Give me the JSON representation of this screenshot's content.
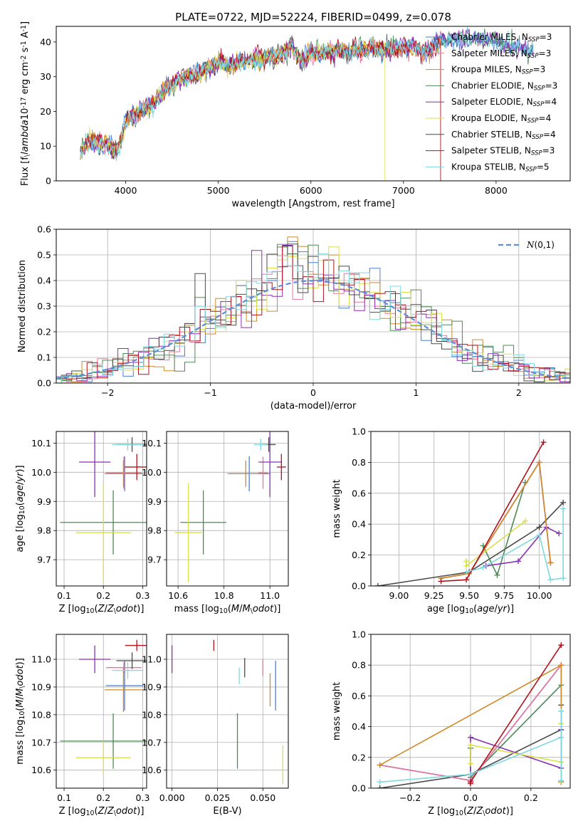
{
  "series_names": [
    "Chabrier MILES, N$_{SSP}$=3",
    "Salpeter MILES, N$_{SSP}$=3",
    "Kroupa MILES, N$_{SSP}$=3",
    "Chabrier ELODIE, N$_{SSP}$=3",
    "Salpeter ELODIE, N$_{SSP}$=4",
    "Kroupa ELODIE, N$_{SSP}$=4",
    "Chabrier STELIB, N$_{SSP}$=4",
    "Salpeter STELIB, N$_{SSP}$=3",
    "Kroupa STELIB, N$_{SSP}$=5"
  ],
  "colors": [
    "#4a7fd4",
    "#e8769c",
    "#d08a2a",
    "#4c8a56",
    "#8a2fb3",
    "#d9e04a",
    "#4a4a4a",
    "#b2121c",
    "#7fd8e0"
  ],
  "chart_data": [
    {
      "type": "line",
      "title": "PLATE=0722, MJD=52224, FIBERID=0499, z=0.078",
      "xlabel": "wavelength [Angstrom, rest frame]",
      "ylabel": "Flux [f$_\\lambda$10$^{-17}$ erg cm$^{-2}$ s$^{-1}$ A$^{-1}$]",
      "xlim": [
        3250,
        8800
      ],
      "ylim": [
        0,
        44.5
      ],
      "xticks": [
        4000,
        5000,
        6000,
        7000,
        8000
      ],
      "yticks": [
        0,
        10,
        20,
        30,
        40
      ],
      "legend_loc": "upper right",
      "continuum_x": [
        3500,
        3550,
        3600,
        3700,
        3800,
        3850,
        3900,
        3950,
        4000,
        4100,
        4200,
        4300,
        4400,
        4500,
        4600,
        4700,
        4800,
        4900,
        5000,
        5100,
        5200,
        5300,
        5400,
        5500,
        5600,
        5700,
        5800,
        5900,
        6000,
        6100,
        6200,
        6300,
        6400,
        6500,
        6600,
        6700,
        6800,
        6900,
        7000,
        7100,
        7200,
        7300,
        7400,
        7600,
        7800,
        8000,
        8200,
        8400
      ],
      "continuum_y": [
        8,
        10,
        12,
        10.5,
        11,
        9.5,
        8,
        12,
        17,
        19,
        20.5,
        22,
        26,
        27.5,
        30,
        30,
        31,
        32.5,
        34,
        33,
        34,
        34,
        35.5,
        35,
        36,
        36.5,
        38.5,
        34,
        37,
        37,
        37,
        38,
        37,
        38,
        38,
        38,
        38,
        38,
        38,
        39,
        37,
        38,
        40,
        41,
        41,
        40,
        38.5,
        38
      ]
    },
    {
      "type": "bar",
      "xlabel": "(data-model)/error",
      "ylabel": "Normed distribution",
      "xlim": [
        -2.5,
        2.5
      ],
      "ylim": [
        0,
        0.6
      ],
      "xticks": [
        -2,
        -1,
        0,
        1,
        2
      ],
      "yticks": [
        0.0,
        0.1,
        0.2,
        0.3,
        0.4,
        0.5,
        0.6
      ],
      "legend": [
        "$\\mathcal{N}(0,1)$"
      ],
      "legend_loc": "upper right"
    },
    {
      "type": "scatter",
      "xlabel": "Z [log$_{10}$($Z/Z_\\odot$)]",
      "ylabel": "age  [log$_{10}$($age/yr$)]",
      "xlim": [
        0.08,
        0.31
      ],
      "ylim": [
        9.61,
        10.14
      ],
      "xticks": [
        0.1,
        0.2,
        0.3
      ],
      "yticks": [
        9.7,
        9.8,
        9.9,
        10.0,
        10.1
      ],
      "points": [
        {
          "x": 0.254,
          "y": 9.995,
          "ex": 0.048,
          "ey": 0.06
        },
        {
          "x": 0.252,
          "y": 9.998,
          "ex": 0.045,
          "ey": 0.055
        },
        {
          "x": 0.251,
          "y": 9.995,
          "ex": 0.048,
          "ey": 0.045
        },
        {
          "x": 0.225,
          "y": 9.828,
          "ex": 0.135,
          "ey": 0.11
        },
        {
          "x": 0.178,
          "y": 10.035,
          "ex": 0.04,
          "ey": 0.12
        },
        {
          "x": 0.2,
          "y": 9.793,
          "ex": 0.07,
          "ey": 0.17
        },
        {
          "x": 0.273,
          "y": 10.095,
          "ex": 0.04,
          "ey": 0.025
        },
        {
          "x": 0.285,
          "y": 10.018,
          "ex": 0.03,
          "ey": 0.045
        },
        {
          "x": 0.262,
          "y": 10.095,
          "ex": 0.04,
          "ey": 0.02
        }
      ]
    },
    {
      "type": "scatter",
      "xlabel": "mass [log$_{10}$($M/M_\\odot$)]",
      "ylabel": "",
      "xlim": [
        10.55,
        11.08
      ],
      "ylim": [
        9.61,
        10.14
      ],
      "xticks": [
        10.6,
        10.8,
        11.0
      ],
      "yticks": [
        9.7,
        9.8,
        9.9,
        10.0,
        10.1
      ],
      "points": [
        {
          "x": 10.91,
          "y": 9.995,
          "ex": 0.09,
          "ey": 0.06
        },
        {
          "x": 10.97,
          "y": 9.998,
          "ex": 0.02,
          "ey": 0.055
        },
        {
          "x": 10.895,
          "y": 9.995,
          "ex": 0.08,
          "ey": 0.045
        },
        {
          "x": 10.71,
          "y": 9.828,
          "ex": 0.1,
          "ey": 0.11
        },
        {
          "x": 11.0,
          "y": 10.035,
          "ex": 0.05,
          "ey": 0.12
        },
        {
          "x": 10.645,
          "y": 9.793,
          "ex": 0.06,
          "ey": 0.17
        },
        {
          "x": 10.995,
          "y": 10.095,
          "ex": 0.03,
          "ey": 0.025
        },
        {
          "x": 11.05,
          "y": 10.018,
          "ex": 0.02,
          "ey": 0.045
        },
        {
          "x": 10.96,
          "y": 10.095,
          "ex": 0.03,
          "ey": 0.02
        }
      ]
    },
    {
      "type": "line",
      "xlabel": "age  [log$_{10}$($age/yr$)]",
      "ylabel": "mass weight",
      "xlim": [
        8.8,
        10.22
      ],
      "ylim": [
        0,
        1.0
      ],
      "xticks": [
        9.0,
        9.25,
        9.5,
        9.75,
        10.0
      ],
      "yticks": [
        0.0,
        0.2,
        0.4,
        0.6,
        0.8,
        1.0
      ],
      "series": [
        {
          "x": [
            9.3,
            9.5,
            10.0,
            10.08
          ],
          "y": [
            0.05,
            0.08,
            0.8,
            0.15
          ]
        },
        {
          "x": [
            9.3,
            9.5,
            10.0,
            10.08
          ],
          "y": [
            0.05,
            0.08,
            0.8,
            0.15
          ]
        },
        {
          "x": [
            9.3,
            9.5,
            10.0,
            10.08
          ],
          "y": [
            0.05,
            0.08,
            0.8,
            0.15
          ]
        },
        {
          "x": [
            9.6,
            9.7,
            9.9
          ],
          "y": [
            0.26,
            0.07,
            0.67
          ]
        },
        {
          "x": [
            9.62,
            9.85,
            10.05,
            10.14
          ],
          "y": [
            0.13,
            0.16,
            0.38,
            0.34
          ]
        },
        {
          "x": [
            9.48,
            9.48,
            9.9
          ],
          "y": [
            0.16,
            0.13,
            0.42
          ]
        },
        {
          "x": [
            8.85,
            9.5,
            10.0,
            10.17
          ],
          "y": [
            0.0,
            0.09,
            0.38,
            0.54
          ]
        },
        {
          "x": [
            9.3,
            9.48,
            10.03
          ],
          "y": [
            0.03,
            0.04,
            0.93
          ]
        },
        {
          "x": [
            9.48,
            9.6,
            10.0,
            10.08,
            10.17,
            10.17
          ],
          "y": [
            0.09,
            0.12,
            0.33,
            0.04,
            0.05,
            0.5
          ]
        }
      ]
    },
    {
      "type": "scatter",
      "xlabel": "Z [log$_{10}$($Z/Z_\\odot$)]",
      "ylabel": "mass [log$_{10}$($M/M_\\odot$)]",
      "xlim": [
        0.08,
        0.31
      ],
      "ylim": [
        10.535,
        11.09
      ],
      "xticks": [
        0.1,
        0.2,
        0.3
      ],
      "yticks": [
        10.6,
        10.7,
        10.8,
        10.9,
        11.0
      ],
      "points": [
        {
          "x": 0.254,
          "y": 10.905,
          "ex": 0.048,
          "ey": 0.09
        },
        {
          "x": 0.252,
          "y": 10.97,
          "ex": 0.045,
          "ey": 0.02
        },
        {
          "x": 0.251,
          "y": 10.89,
          "ex": 0.048,
          "ey": 0.08
        },
        {
          "x": 0.225,
          "y": 10.705,
          "ex": 0.135,
          "ey": 0.1
        },
        {
          "x": 0.178,
          "y": 11.0,
          "ex": 0.04,
          "ey": 0.05
        },
        {
          "x": 0.2,
          "y": 10.645,
          "ex": 0.07,
          "ey": 0.06
        },
        {
          "x": 0.273,
          "y": 10.995,
          "ex": 0.04,
          "ey": 0.03
        },
        {
          "x": 0.285,
          "y": 11.05,
          "ex": 0.03,
          "ey": 0.02
        },
        {
          "x": 0.262,
          "y": 10.96,
          "ex": 0.04,
          "ey": 0.03
        }
      ]
    },
    {
      "type": "scatter",
      "xlabel": "E(B-V)",
      "ylabel": "",
      "xlim": [
        -0.003,
        0.064
      ],
      "ylim": [
        10.535,
        11.09
      ],
      "xticks": [
        0.0,
        0.025,
        0.05
      ],
      "xticklabels": [
        "0.000",
        "0.025",
        "0.050"
      ],
      "yticks": [
        10.6,
        10.7,
        10.8,
        10.9,
        11.0
      ],
      "points": [
        {
          "x": 0.057,
          "y": 10.905,
          "ex": 0.0,
          "ey": 0.09
        },
        {
          "x": 0.05,
          "y": 10.97,
          "ex": 0.0,
          "ey": 0.03
        },
        {
          "x": 0.054,
          "y": 10.89,
          "ex": 0.0,
          "ey": 0.06
        },
        {
          "x": 0.036,
          "y": 10.705,
          "ex": 0.0,
          "ey": 0.1
        },
        {
          "x": 0.0,
          "y": 11.0,
          "ex": 0.0,
          "ey": 0.05
        },
        {
          "x": 0.061,
          "y": 10.62,
          "ex": 0.0,
          "ey": 0.07
        },
        {
          "x": 0.04,
          "y": 10.97,
          "ex": 0.0,
          "ey": 0.035
        },
        {
          "x": 0.023,
          "y": 11.05,
          "ex": 0.0,
          "ey": 0.02
        },
        {
          "x": 0.037,
          "y": 10.94,
          "ex": 0.0,
          "ey": 0.03
        }
      ]
    },
    {
      "type": "line",
      "xlabel": "Z [log$_{10}$($Z/Z_\\odot$)]",
      "ylabel": "mass weight",
      "xlim": [
        -0.33,
        0.33
      ],
      "ylim": [
        0,
        1.0
      ],
      "xticks": [
        -0.2,
        0.0,
        0.2
      ],
      "yticks": [
        0.0,
        0.2,
        0.4,
        0.6,
        0.8,
        1.0
      ],
      "series": [
        {
          "x": [
            -0.3,
            0.0,
            0.3,
            0.3
          ],
          "y": [
            0.15,
            0.05,
            0.8,
            0.04
          ]
        },
        {
          "x": [
            -0.3,
            0.0,
            0.3,
            0.3
          ],
          "y": [
            0.15,
            0.05,
            0.8,
            0.04
          ]
        },
        {
          "x": [
            -0.3,
            0.3,
            0.3
          ],
          "y": [
            0.15,
            0.8,
            0.04
          ]
        },
        {
          "x": [
            0.0,
            0.0,
            0.3
          ],
          "y": [
            0.26,
            0.07,
            0.67
          ]
        },
        {
          "x": [
            0.0,
            0.0,
            0.3,
            0.3
          ],
          "y": [
            0.04,
            0.33,
            0.13,
            0.38
          ]
        },
        {
          "x": [
            0.0,
            0.0,
            0.3,
            0.3
          ],
          "y": [
            0.16,
            0.28,
            0.17,
            0.42
          ]
        },
        {
          "x": [
            -0.3,
            0.0,
            0.3,
            0.3
          ],
          "y": [
            0.0,
            0.09,
            0.38,
            0.54
          ]
        },
        {
          "x": [
            0.0,
            0.0,
            0.3
          ],
          "y": [
            0.03,
            0.04,
            0.93
          ]
        },
        {
          "x": [
            -0.3,
            0.0,
            0.3,
            0.3,
            0.3
          ],
          "y": [
            0.04,
            0.09,
            0.33,
            0.5,
            0.05
          ]
        }
      ]
    }
  ]
}
